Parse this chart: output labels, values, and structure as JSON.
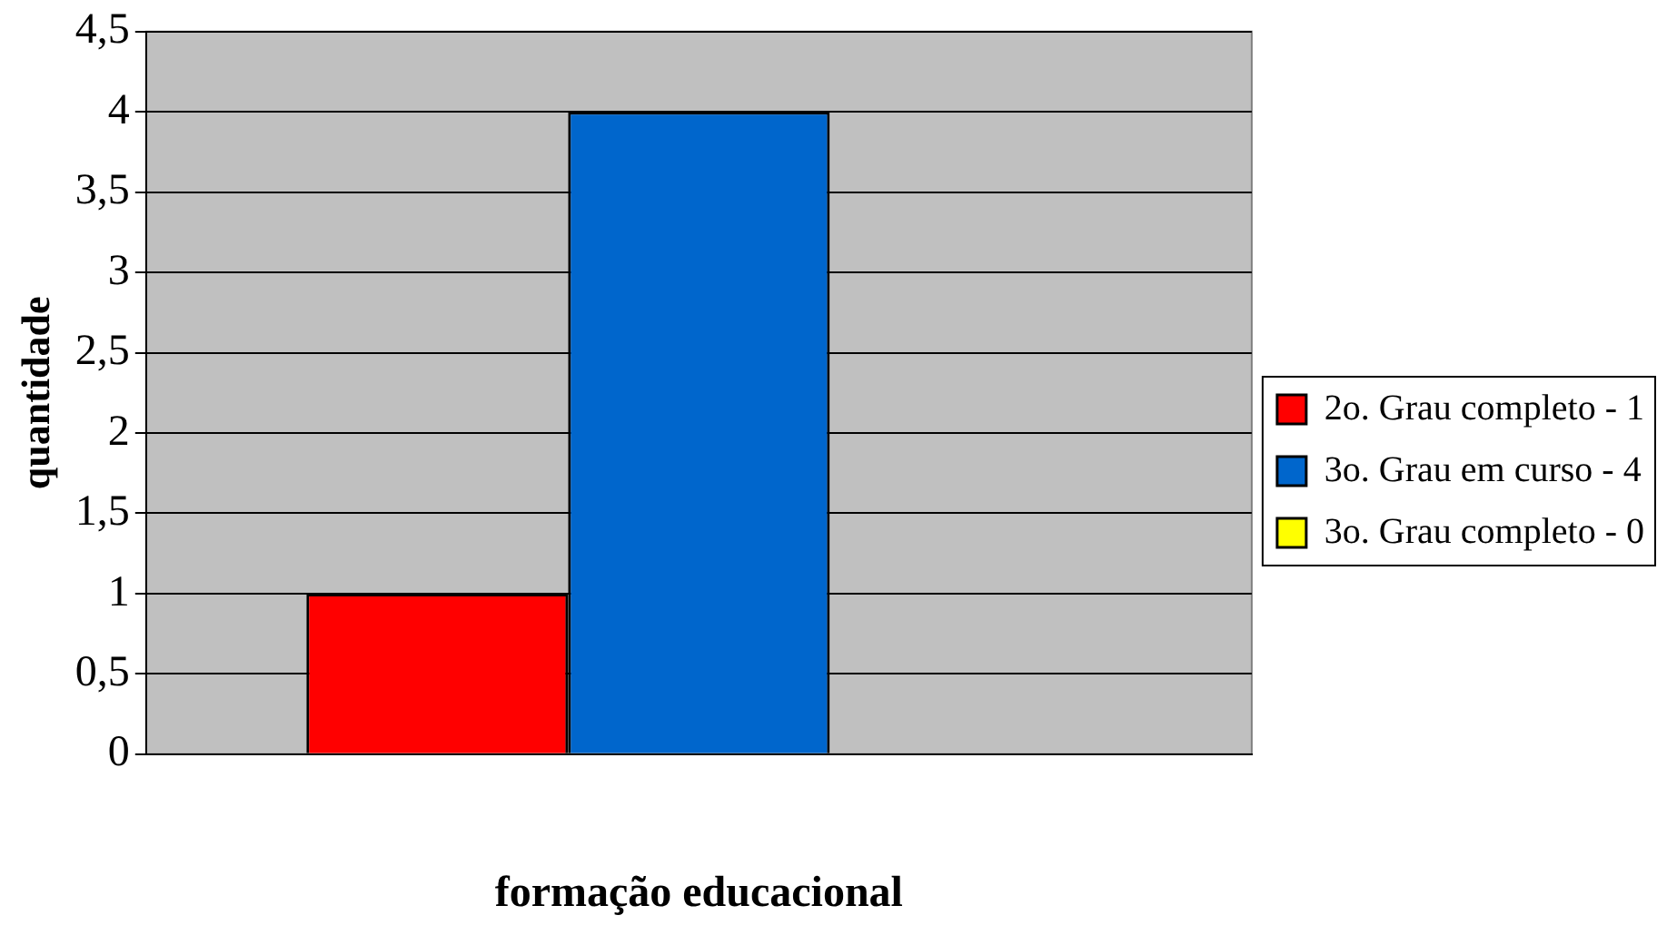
{
  "chart_data": {
    "type": "bar",
    "xlabel": "formação educacional",
    "ylabel": "quantidade",
    "categories": [
      null
    ],
    "series": [
      {
        "name": "2o. Grau completo - 1",
        "color": "#ff0000",
        "values": [
          1
        ]
      },
      {
        "name": "3o. Grau em curso - 4",
        "color": "#0066cc",
        "values": [
          4
        ]
      },
      {
        "name": "3o. Grau completo - 0",
        "color": "#ffff00",
        "values": [
          0
        ]
      }
    ],
    "ylim": [
      0,
      4.5
    ],
    "yticks": [
      0,
      {
        "value": 0.5,
        "label": "0,5"
      },
      1,
      {
        "value": 1.5,
        "label": "1,5"
      },
      2,
      {
        "value": 2.5,
        "label": "2,5"
      },
      3,
      {
        "value": 3.5,
        "label": "3,5"
      },
      4,
      {
        "value": 4.5,
        "label": "4,5"
      }
    ],
    "grid": "y",
    "legend": "right"
  }
}
